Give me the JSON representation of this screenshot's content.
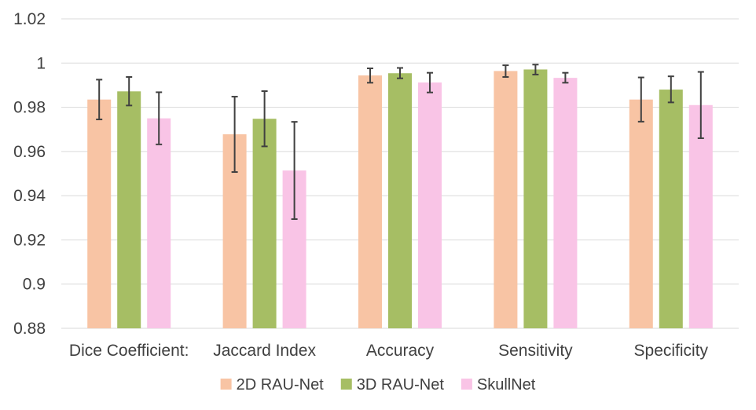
{
  "chart_data": {
    "type": "bar",
    "title": "",
    "xlabel": "",
    "ylabel": "",
    "categories": [
      "Dice Coefficient:",
      "Jaccard Index",
      "Accuracy",
      "Sensitivity",
      "Specificity"
    ],
    "ylim": [
      0.88,
      1.02
    ],
    "yticks": [
      0.88,
      0.9,
      0.92,
      0.94,
      0.96,
      0.98,
      1.0,
      1.02
    ],
    "ytick_labels": [
      "0.88",
      "0.9",
      "0.92",
      "0.94",
      "0.96",
      "0.98",
      "1",
      "1.02"
    ],
    "grid": true,
    "legend_position": "bottom",
    "series": [
      {
        "name": "2D RAU-Net",
        "color": "#F8C4A4",
        "values": [
          0.9835,
          0.9678,
          0.9944,
          0.9964,
          0.9835
        ],
        "err_low": [
          0.9745,
          0.9507,
          0.9911,
          0.9937,
          0.9735
        ],
        "err_high": [
          0.9925,
          0.9848,
          0.9976,
          0.999,
          0.9935
        ]
      },
      {
        "name": "3D RAU-Net",
        "color": "#A6BE64",
        "values": [
          0.9872,
          0.9748,
          0.9954,
          0.9971,
          0.988
        ],
        "err_low": [
          0.9808,
          0.9623,
          0.9931,
          0.9948,
          0.9822
        ],
        "err_high": [
          0.9937,
          0.9873,
          0.9978,
          0.9993,
          0.994
        ]
      },
      {
        "name": "SkullNet",
        "color": "#F9C4E6",
        "values": [
          0.975,
          0.9514,
          0.9912,
          0.9933,
          0.981
        ],
        "err_low": [
          0.9632,
          0.9294,
          0.9867,
          0.9911,
          0.966
        ],
        "err_high": [
          0.9868,
          0.9734,
          0.9956,
          0.9956,
          0.996
        ]
      }
    ]
  }
}
